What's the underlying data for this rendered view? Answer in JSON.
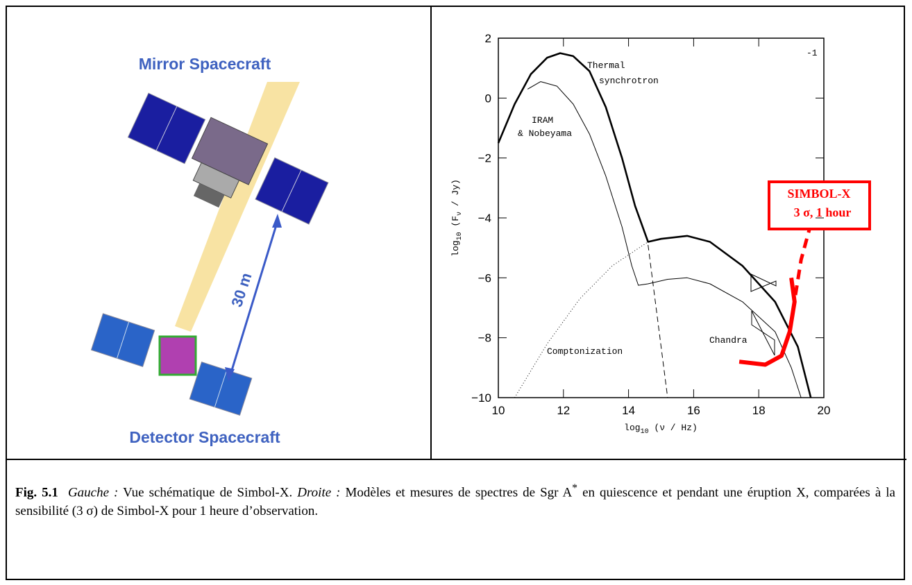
{
  "left_panel": {
    "top_label": "Mirror Spacecraft",
    "bottom_label": "Detector Spacecraft",
    "distance_label": "30 m"
  },
  "chart_data": {
    "type": "line",
    "xlabel": {
      "main": "log",
      "sub": "10",
      "rest": " (ν / Hz)"
    },
    "ylabel": {
      "main": "log",
      "sub": "10",
      "open": " (F",
      "sub2": "ν",
      "rest": " / Jy)"
    },
    "xlim": [
      10,
      20
    ],
    "ylim": [
      -10,
      2
    ],
    "xticks": [
      10,
      12,
      14,
      16,
      18,
      20
    ],
    "yticks": [
      {
        "value": -10,
        "label": "−10"
      },
      {
        "value": -8,
        "label": "−8"
      },
      {
        "value": -6,
        "label": "−6"
      },
      {
        "value": -4,
        "label": "−4"
      },
      {
        "value": -2,
        "label": "−2"
      },
      0,
      2
    ],
    "series": [
      {
        "color": "#000000",
        "width": 2.6,
        "dash": "none",
        "x": [
          10,
          10.5,
          11,
          11.5,
          11.9,
          12.3,
          12.8,
          13.3,
          13.8,
          14.2,
          14.6,
          15,
          15.8,
          16.5,
          17.5,
          18.5,
          19.2,
          19.6
        ],
        "values": [
          -1.5,
          -0.2,
          0.8,
          1.35,
          1.5,
          1.4,
          0.9,
          -0.3,
          -2.0,
          -3.6,
          -4.8,
          -4.7,
          -4.6,
          -4.8,
          -5.6,
          -6.8,
          -8.3,
          -10
        ]
      },
      {
        "color": "#000000",
        "width": 1,
        "dash": "none",
        "x": [
          10.9,
          11.3,
          11.8,
          12.3,
          12.8,
          13.3,
          13.8,
          14.1,
          14.3,
          14.6,
          15.2,
          15.8,
          16.5,
          17.5,
          18.5,
          19,
          19.3
        ],
        "values": [
          0.3,
          0.55,
          0.4,
          -0.2,
          -1.2,
          -2.6,
          -4.3,
          -5.6,
          -6.25,
          -6.2,
          -6.05,
          -6.0,
          -6.2,
          -6.8,
          -7.8,
          -9.0,
          -10
        ]
      },
      {
        "color": "#000000",
        "width": 1,
        "dash": "1 3",
        "x": [
          10.5,
          11.5,
          12.5,
          13.5,
          14.6
        ],
        "values": [
          -10,
          -8.2,
          -6.7,
          -5.6,
          -4.8
        ]
      },
      {
        "color": "#000000",
        "width": 1,
        "dash": "8 5",
        "x": [
          14.6,
          15.2
        ],
        "values": [
          -4.9,
          -10
        ]
      },
      {
        "color": "#ff0000",
        "width": 6,
        "dash": "none",
        "x": [
          17.4,
          18.2,
          18.7,
          18.95,
          19.1,
          19.0
        ],
        "values": [
          -8.8,
          -8.9,
          -8.6,
          -7.8,
          -6.8,
          -6.0
        ]
      },
      {
        "color": "#ff0000",
        "width": 5,
        "dash": "14 9",
        "x": [
          19.05,
          19.3,
          19.55
        ],
        "values": [
          -7.1,
          -5.4,
          -4.4
        ]
      }
    ],
    "annotations": [
      "Thermal",
      "synchrotron",
      "IRAM",
      "& Nobeyama",
      "Comptonization",
      "Chandra",
      "-1"
    ],
    "sensitivity_box": {
      "line1": "SIMBOL-X",
      "line2": "3 σ, 1 hour",
      "color": "#ff0000"
    }
  },
  "caption": {
    "label": "Fig. 5.1",
    "left_tag": "Gauche :",
    "left_text": " Vue schématique de Simbol-X. ",
    "right_tag": "Droite :",
    "right_text": " Modèles et mesures de spectres de Sgr A",
    "sup": "*",
    "end_text": " en quiescence et pendant une éruption X, comparées à la sensibilité (3 σ) de Simbol-X pour 1 heure d’observation."
  }
}
